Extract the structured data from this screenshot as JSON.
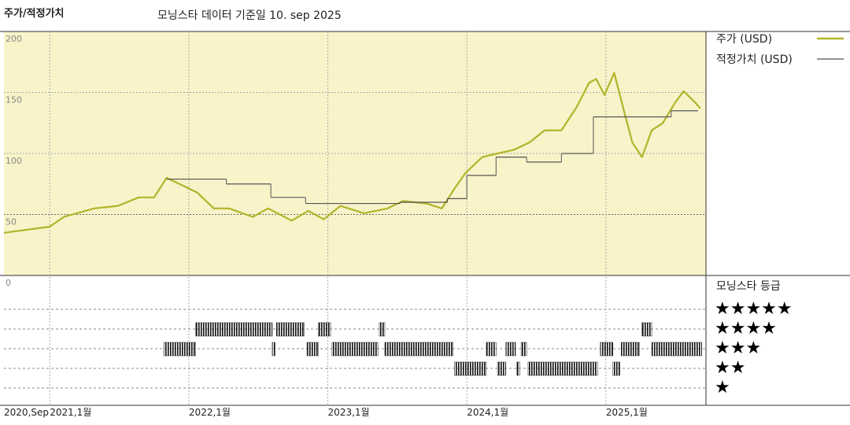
{
  "chart_data": [
    {
      "type": "line",
      "title": "주가/적정가치",
      "subtitle": "모닝스타 데이터 기준일 10. sep 2025",
      "xlim": [
        2020.67,
        2025.72
      ],
      "ylim": [
        0,
        200
      ],
      "xticks": [
        {
          "value": 2020.67,
          "label": "2020,Sep"
        },
        {
          "value": 2021,
          "label": "2021,1월"
        },
        {
          "value": 2022,
          "label": "2022,1월"
        },
        {
          "value": 2023,
          "label": "2023,1월"
        },
        {
          "value": 2024,
          "label": "2024,1월"
        },
        {
          "value": 2025,
          "label": "2025,1월"
        }
      ],
      "yticks": [
        0,
        50,
        100,
        150,
        200
      ],
      "background": "#f8f3c9",
      "grid": true,
      "series": [
        {
          "name": "주가 (USD)",
          "color": "#b2b42a",
          "style": "line",
          "x": [
            2020.67,
            2021.0,
            2021.1,
            2021.32,
            2021.49,
            2021.64,
            2021.75,
            2021.84,
            2021.95,
            2022.06,
            2022.18,
            2022.29,
            2022.46,
            2022.57,
            2022.74,
            2022.86,
            2022.97,
            2023.09,
            2023.26,
            2023.43,
            2023.54,
            2023.71,
            2023.82,
            2023.91,
            2023.99,
            2024.11,
            2024.22,
            2024.34,
            2024.45,
            2024.56,
            2024.68,
            2024.79,
            2024.88,
            2024.93,
            2024.99,
            2025.06,
            2025.13,
            2025.19,
            2025.26,
            2025.33,
            2025.41,
            2025.5,
            2025.56,
            2025.64,
            2025.68
          ],
          "values": [
            35,
            40,
            48,
            55,
            57,
            64,
            64,
            80,
            74,
            68,
            55,
            55,
            48,
            55,
            45,
            53,
            46,
            57,
            51,
            55,
            61,
            59,
            55,
            71,
            84,
            97,
            100,
            103,
            109,
            119,
            119,
            138,
            158,
            161,
            148,
            166,
            135,
            109,
            97,
            119,
            125,
            142,
            151,
            142,
            137
          ]
        },
        {
          "name": "적정가치 (USD)",
          "color": "#555555",
          "style": "step",
          "x": [
            2021.84,
            2022.27,
            2022.59,
            2022.84,
            2023.52,
            2023.86,
            2024.0,
            2024.21,
            2024.43,
            2024.68,
            2024.91,
            2025.47
          ],
          "values": [
            79,
            75,
            64,
            59,
            60,
            63,
            82,
            97,
            93,
            100,
            130,
            135
          ]
        }
      ]
    },
    {
      "type": "rating",
      "title": "모닝스타 등급",
      "categories": [
        "★★★★★",
        "★★★★",
        "★★★",
        "★★",
        "★"
      ],
      "category_values": [
        5,
        4,
        3,
        2,
        1
      ],
      "color": "#222222",
      "segments": [
        {
          "x": [
            2021.82,
            2022.05
          ],
          "value": 3
        },
        {
          "x": [
            2022.05,
            2022.6
          ],
          "value": 4
        },
        {
          "x": [
            2022.6,
            2022.62
          ],
          "value": 3
        },
        {
          "x": [
            2022.63,
            2022.83
          ],
          "value": 4
        },
        {
          "x": [
            2022.85,
            2022.93
          ],
          "value": 3
        },
        {
          "x": [
            2022.93,
            2023.02
          ],
          "value": 4
        },
        {
          "x": [
            2023.03,
            2023.36
          ],
          "value": 3
        },
        {
          "x": [
            2023.37,
            2023.41
          ],
          "value": 4
        },
        {
          "x": [
            2023.41,
            2023.9
          ],
          "value": 3
        },
        {
          "x": [
            2023.91,
            2024.14
          ],
          "value": 2
        },
        {
          "x": [
            2024.14,
            2024.21
          ],
          "value": 3
        },
        {
          "x": [
            2024.22,
            2024.28
          ],
          "value": 2
        },
        {
          "x": [
            2024.28,
            2024.35
          ],
          "value": 3
        },
        {
          "x": [
            2024.36,
            2024.38
          ],
          "value": 2
        },
        {
          "x": [
            2024.39,
            2024.43
          ],
          "value": 3
        },
        {
          "x": [
            2024.44,
            2024.94
          ],
          "value": 2
        },
        {
          "x": [
            2024.96,
            2025.05
          ],
          "value": 3
        },
        {
          "x": [
            2025.05,
            2025.1
          ],
          "value": 2
        },
        {
          "x": [
            2025.11,
            2025.24
          ],
          "value": 3
        },
        {
          "x": [
            2025.26,
            2025.33
          ],
          "value": 4
        },
        {
          "x": [
            2025.33,
            2025.69
          ],
          "value": 3
        }
      ]
    }
  ]
}
